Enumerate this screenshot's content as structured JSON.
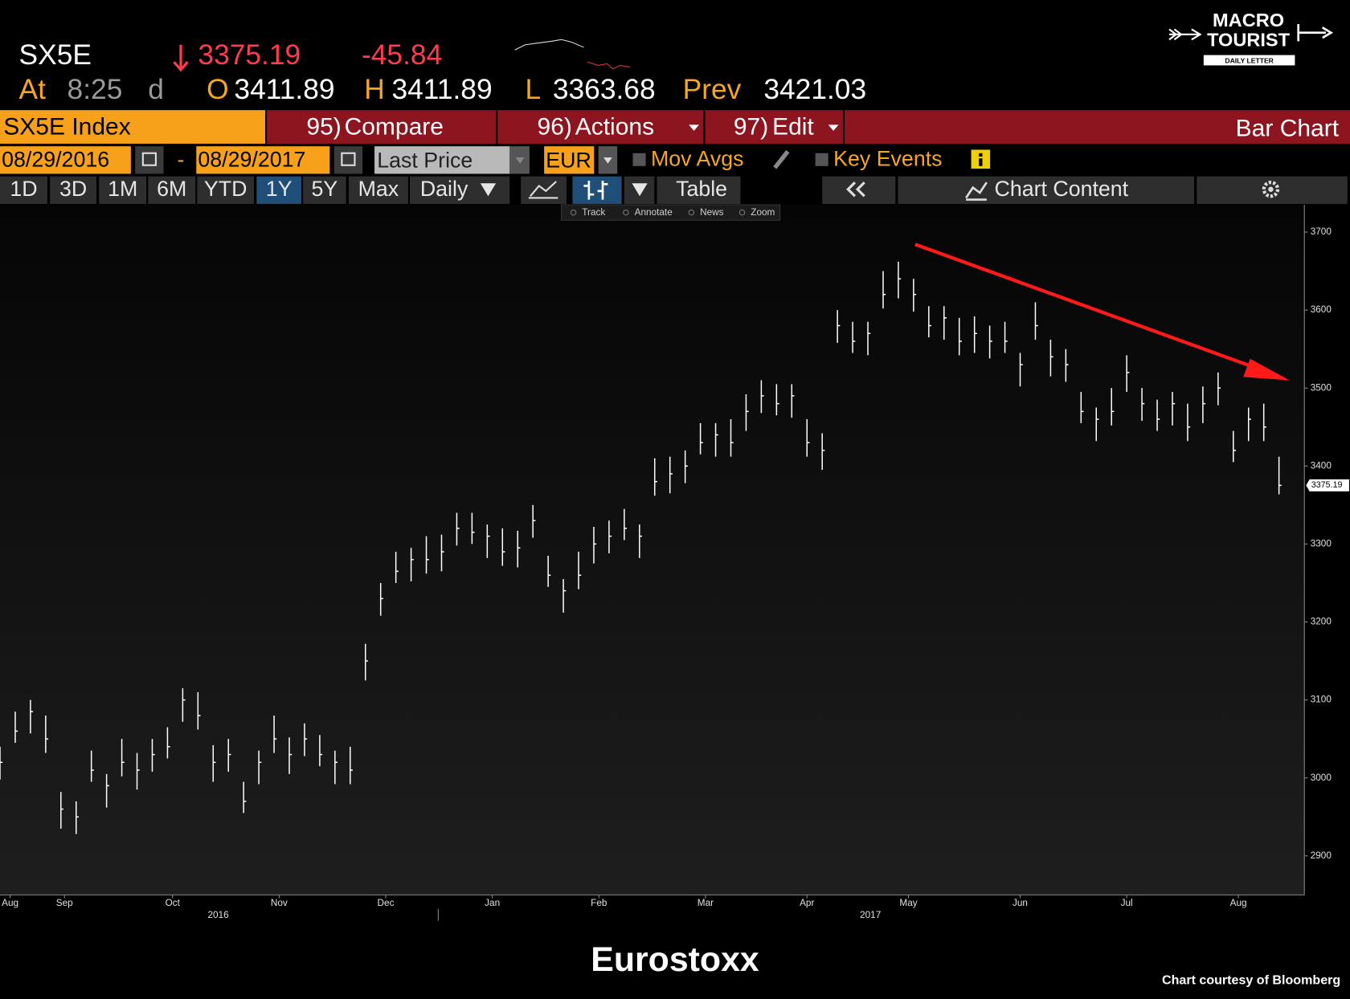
{
  "header": {
    "ticker": "SX5E",
    "price": "3375.19",
    "change": "-45.84",
    "at": "At",
    "time": "8:25",
    "flag": "d",
    "open_label": "O",
    "open": "3411.89",
    "high_label": "H",
    "high": "3411.89",
    "low_label": "L",
    "low": "3363.68",
    "prev_label": "Prev",
    "prev": "3421.03",
    "logo": {
      "line1": "MACRO",
      "line2": "TOURIST",
      "tag": "DAILY LETTER"
    }
  },
  "toolbar": {
    "security": "SX5E Index",
    "compare_num": "95)",
    "compare": "Compare",
    "actions_num": "96)",
    "actions": "Actions",
    "edit_num": "97)",
    "edit": "Edit",
    "view": "Bar Chart",
    "start_date": "08/29/2016",
    "dash": "-",
    "end_date": "08/29/2017",
    "field": "Last Price",
    "currency": "EUR",
    "mov_avgs": "Mov Avgs",
    "key_events": "Key Events",
    "ranges": [
      "1D",
      "3D",
      "1M",
      "6M",
      "YTD",
      "1Y",
      "5Y",
      "Max"
    ],
    "frequency": "Daily",
    "table": "Table",
    "chart_content": "Chart Content",
    "tools": [
      "Track",
      "Annotate",
      "News",
      "Zoom"
    ]
  },
  "chart_data": {
    "type": "ohlc",
    "color": "#ffffff",
    "x": [
      0,
      3,
      6,
      9,
      12,
      15,
      18,
      21,
      24,
      27,
      30,
      33,
      36,
      39,
      42,
      45,
      48,
      51,
      54,
      57,
      60,
      63,
      66,
      69,
      72,
      75,
      78,
      81,
      84,
      87,
      90,
      93,
      96,
      99,
      102,
      105,
      108,
      111,
      114,
      117,
      120,
      123,
      126,
      129,
      132,
      135,
      138,
      141,
      144,
      147,
      150,
      153,
      156,
      159,
      162,
      165,
      168,
      171,
      174,
      177,
      180,
      183,
      186,
      189,
      192,
      195,
      198,
      201,
      204,
      207,
      210,
      213,
      216,
      219,
      222,
      225,
      228,
      231,
      234,
      237,
      240,
      243,
      246,
      249,
      252
    ],
    "high": [
      3040,
      3085,
      3100,
      3080,
      2982,
      2970,
      3035,
      3005,
      3050,
      3032,
      3050,
      3065,
      3115,
      3110,
      3042,
      3050,
      2995,
      3035,
      3080,
      3052,
      3070,
      3055,
      3035,
      3040,
      3172,
      3250,
      3290,
      3295,
      3310,
      3312,
      3340,
      3340,
      3325,
      3320,
      3317,
      3350,
      3285,
      3255,
      3290,
      3322,
      3330,
      3345,
      3325,
      3410,
      3412,
      3420,
      3455,
      3455,
      3460,
      3492,
      3510,
      3505,
      3505,
      3460,
      3442,
      3600,
      3585,
      3585,
      3650,
      3662,
      3640,
      3605,
      3605,
      3590,
      3592,
      3580,
      3585,
      3545,
      3610,
      3562,
      3550,
      3495,
      3475,
      3500,
      3542,
      3500,
      3485,
      3495,
      3480,
      3502,
      3520,
      3445,
      3475,
      3480,
      3411.89
    ],
    "low": [
      2998,
      3045,
      3057,
      3032,
      2935,
      2928,
      2995,
      2962,
      3002,
      2985,
      3008,
      3025,
      3072,
      3062,
      2995,
      3008,
      2955,
      2992,
      3032,
      3005,
      3028,
      3015,
      2992,
      2992,
      3125,
      3208,
      3250,
      3252,
      3262,
      3265,
      3298,
      3300,
      3282,
      3272,
      3270,
      3308,
      3245,
      3212,
      3242,
      3275,
      3288,
      3305,
      3282,
      3362,
      3365,
      3378,
      3415,
      3412,
      3412,
      3445,
      3468,
      3465,
      3462,
      3412,
      3395,
      3558,
      3545,
      3542,
      3602,
      3615,
      3598,
      3565,
      3562,
      3542,
      3545,
      3538,
      3545,
      3502,
      3562,
      3515,
      3508,
      3455,
      3432,
      3452,
      3495,
      3458,
      3445,
      3452,
      3432,
      3455,
      3478,
      3405,
      3432,
      3432,
      3363.68
    ],
    "close": [
      3020,
      3060,
      3085,
      3050,
      2960,
      2950,
      3010,
      2990,
      3020,
      3010,
      3030,
      3040,
      3100,
      3080,
      3020,
      3030,
      2970,
      3020,
      3050,
      3030,
      3050,
      3030,
      3020,
      3010,
      3150,
      3230,
      3265,
      3280,
      3280,
      3290,
      3320,
      3315,
      3310,
      3290,
      3295,
      3330,
      3260,
      3240,
      3260,
      3300,
      3310,
      3320,
      3310,
      3380,
      3390,
      3400,
      3430,
      3440,
      3430,
      3470,
      3490,
      3480,
      3490,
      3430,
      3420,
      3580,
      3560,
      3570,
      3620,
      3640,
      3620,
      3580,
      3590,
      3560,
      3570,
      3560,
      3560,
      3530,
      3580,
      3540,
      3530,
      3470,
      3460,
      3470,
      3520,
      3480,
      3460,
      3480,
      3450,
      3480,
      3500,
      3420,
      3460,
      3450,
      3375.19
    ],
    "last_price": 3375.19,
    "xlim": [
      0,
      257
    ],
    "xticks": [
      {
        "value": 2,
        "label": "Aug"
      },
      {
        "value": 12.7,
        "label": "Sep"
      },
      {
        "value": 34,
        "label": "Oct"
      },
      {
        "value": 55,
        "label": "Nov"
      },
      {
        "value": 76,
        "label": "Dec"
      },
      {
        "value": 97,
        "label": "Jan"
      },
      {
        "value": 118,
        "label": "Feb"
      },
      {
        "value": 139,
        "label": "Mar"
      },
      {
        "value": 159,
        "label": "Apr"
      },
      {
        "value": 179,
        "label": "May"
      },
      {
        "value": 201,
        "label": "Jun"
      },
      {
        "value": 222,
        "label": "Jul"
      },
      {
        "value": 244,
        "label": "Aug"
      }
    ],
    "year_labels": [
      {
        "value": 43,
        "label": "2016"
      },
      {
        "value": 171.5,
        "label": "2017"
      }
    ],
    "ylim": [
      2850,
      3735
    ],
    "yticks": [
      2900,
      3000,
      3100,
      3200,
      3300,
      3400,
      3500,
      3600,
      3700
    ],
    "caption": "Eurostoxx",
    "credit": "Chart courtesy of Bloomberg"
  }
}
